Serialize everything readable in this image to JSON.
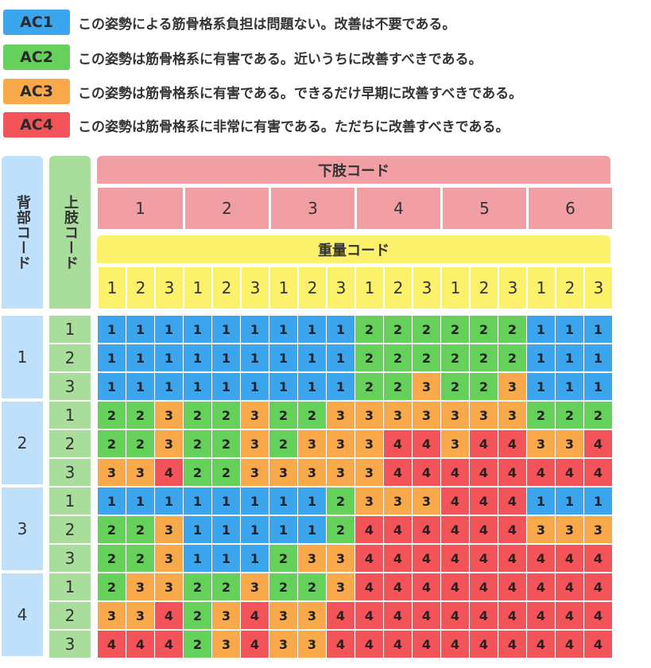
{
  "legend": [
    {
      "code": "AC1",
      "text": "この姿勢による筋骨格系負担は問題ない。改善は不要である。",
      "color": "#3ba6ee"
    },
    {
      "code": "AC2",
      "text": "この姿勢は筋骨格系に有害である。近いうちに改善すべきである。",
      "color": "#66d15a"
    },
    {
      "code": "AC3",
      "text": "この姿勢は筋骨格系に有害である。できるだけ早期に改善すべきである。",
      "color": "#f9a94a"
    },
    {
      "code": "AC4",
      "text": "この姿勢は筋骨格系に非常に有害である。ただちに改善すべきである。",
      "color": "#f2545a"
    }
  ],
  "headers": {
    "back_code": "背部コード",
    "upper_limb_code": "上肢コード",
    "lower_limb_code": "下肢コード",
    "weight_code": "重量コード",
    "lower_limb_values": [
      "1",
      "2",
      "3",
      "4",
      "5",
      "6"
    ],
    "weight_values": [
      "1",
      "2",
      "3"
    ],
    "back_values": [
      "1",
      "2",
      "3",
      "4"
    ],
    "upper_limb_values": [
      "1",
      "2",
      "3"
    ]
  },
  "table": [
    [
      "1",
      "1",
      "1",
      "1",
      "1",
      "1",
      "1",
      "1",
      "1",
      "2",
      "2",
      "2",
      "2",
      "2",
      "2",
      "1",
      "1",
      "1"
    ],
    [
      "1",
      "1",
      "1",
      "1",
      "1",
      "1",
      "1",
      "1",
      "1",
      "2",
      "2",
      "2",
      "2",
      "2",
      "2",
      "1",
      "1",
      "1"
    ],
    [
      "1",
      "1",
      "1",
      "1",
      "1",
      "1",
      "1",
      "1",
      "1",
      "2",
      "2",
      "3",
      "2",
      "2",
      "3",
      "1",
      "1",
      "1"
    ],
    [
      "2",
      "2",
      "3",
      "2",
      "2",
      "3",
      "2",
      "2",
      "3",
      "3",
      "3",
      "3",
      "3",
      "3",
      "3",
      "2",
      "2",
      "2"
    ],
    [
      "2",
      "2",
      "3",
      "2",
      "2",
      "3",
      "2",
      "3",
      "3",
      "3",
      "4",
      "4",
      "3",
      "4",
      "4",
      "3",
      "3",
      "4"
    ],
    [
      "3",
      "3",
      "4",
      "2",
      "2",
      "3",
      "3",
      "3",
      "3",
      "3",
      "4",
      "4",
      "4",
      "4",
      "4",
      "4",
      "4",
      "4"
    ],
    [
      "1",
      "1",
      "1",
      "1",
      "1",
      "1",
      "1",
      "1",
      "2",
      "3",
      "3",
      "3",
      "4",
      "4",
      "4",
      "1",
      "1",
      "1"
    ],
    [
      "2",
      "2",
      "3",
      "1",
      "1",
      "1",
      "1",
      "1",
      "2",
      "4",
      "4",
      "4",
      "4",
      "4",
      "4",
      "3",
      "3",
      "3"
    ],
    [
      "2",
      "2",
      "3",
      "1",
      "1",
      "1",
      "2",
      "3",
      "3",
      "4",
      "4",
      "4",
      "4",
      "4",
      "4",
      "4",
      "4",
      "4"
    ],
    [
      "2",
      "3",
      "3",
      "2",
      "2",
      "3",
      "2",
      "2",
      "3",
      "4",
      "4",
      "4",
      "4",
      "4",
      "4",
      "4",
      "4",
      "4"
    ],
    [
      "3",
      "3",
      "4",
      "2",
      "3",
      "4",
      "3",
      "3",
      "4",
      "4",
      "4",
      "4",
      "4",
      "4",
      "4",
      "4",
      "4",
      "4"
    ],
    [
      "4",
      "4",
      "4",
      "2",
      "3",
      "4",
      "3",
      "3",
      "4",
      "4",
      "4",
      "4",
      "4",
      "4",
      "4",
      "4",
      "4",
      "4"
    ]
  ]
}
